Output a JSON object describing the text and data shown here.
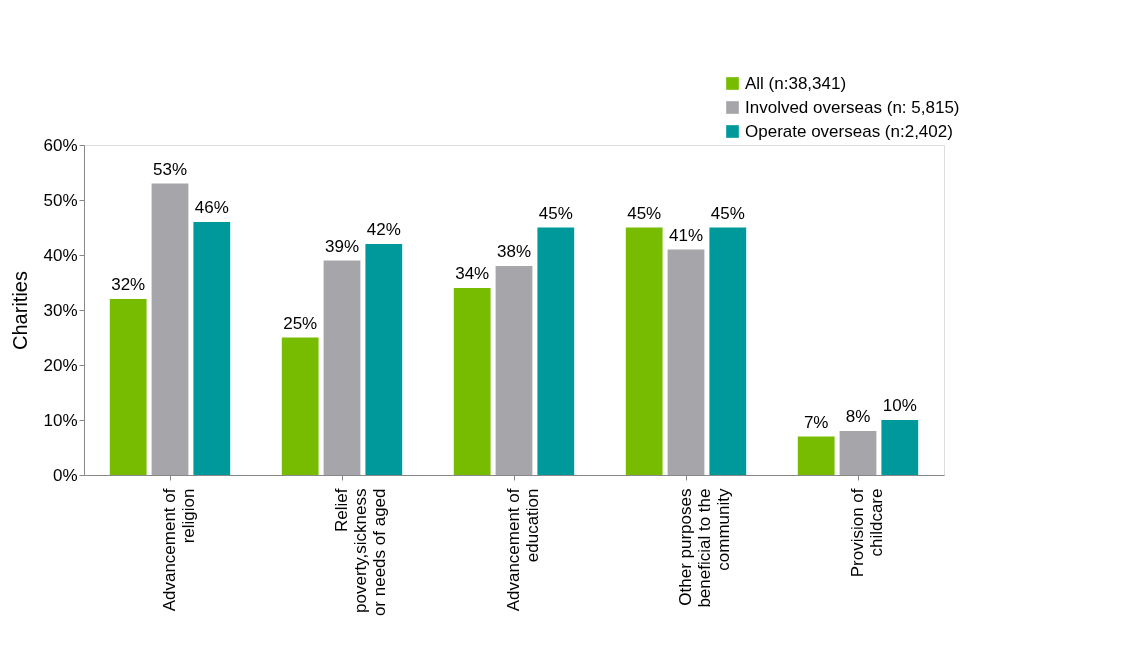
{
  "chart_data": {
    "type": "bar",
    "ylabel": "Charities",
    "categories": [
      "Advancement of\nreligion",
      "Relief\npoverty,sickness\nor needs of aged",
      "Advancement of\neducation",
      "Other purposes\nbeneficial to the\ncommunity",
      "Provision of\nchildcare"
    ],
    "series": [
      {
        "name": "All (n:38,341)",
        "color": "#77bc00",
        "values": [
          32,
          25,
          34,
          45,
          7
        ],
        "value_labels": [
          "32%",
          "25%",
          "34%",
          "45%",
          "7%"
        ]
      },
      {
        "name": "Involved overseas (n: 5,815)",
        "color": "#a5a5aa",
        "values": [
          53,
          39,
          38,
          41,
          8
        ],
        "value_labels": [
          "53%",
          "39%",
          "38%",
          "41%",
          "8%"
        ]
      },
      {
        "name": "Operate overseas (n:2,402)",
        "color": "#00999b",
        "values": [
          46,
          42,
          45,
          45,
          10
        ],
        "value_labels": [
          "46%",
          "42%",
          "45%",
          "45%",
          "10%"
        ]
      }
    ],
    "ylim": [
      0,
      60
    ],
    "yticks": [
      {
        "value": 0,
        "label": "0%"
      },
      {
        "value": 10,
        "label": "10%"
      },
      {
        "value": 20,
        "label": "20%"
      },
      {
        "value": 30,
        "label": "30%"
      },
      {
        "value": 40,
        "label": "40%"
      },
      {
        "value": 50,
        "label": "50%"
      },
      {
        "value": 60,
        "label": "60%"
      }
    ],
    "grid": false,
    "legend": "top right"
  }
}
